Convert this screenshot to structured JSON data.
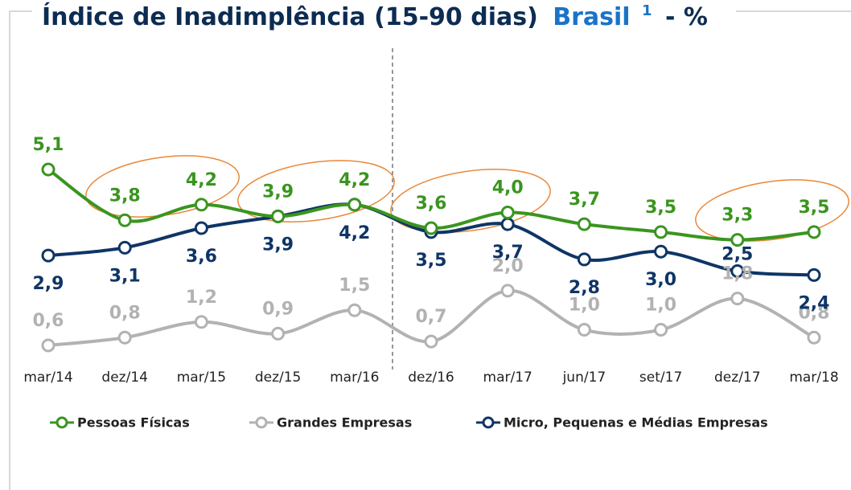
{
  "chart_data": {
    "type": "line",
    "title": "Índice de Inadimplência (15-90 dias)",
    "title_highlight": "Brasil",
    "title_footnote": "1",
    "title_suffix": "- %",
    "categories": [
      "mar/14",
      "dez/14",
      "mar/15",
      "dez/15",
      "mar/16",
      "dez/16",
      "mar/17",
      "jun/17",
      "set/17",
      "dez/17",
      "mar/18"
    ],
    "series": [
      {
        "name": "Pessoas Físicas",
        "color": "#3a951f",
        "values": [
          5.1,
          3.8,
          4.2,
          3.9,
          4.2,
          3.6,
          4.0,
          3.7,
          3.5,
          3.3,
          3.5
        ],
        "value_labels": [
          "5,1",
          "3,8",
          "4,2",
          "3,9",
          "4,2",
          "3,6",
          "4,0",
          "3,7",
          "3,5",
          "3,3",
          "3,5"
        ]
      },
      {
        "name": "Grandes Empresas",
        "color": "#b2b2b2",
        "values": [
          0.6,
          0.8,
          1.2,
          0.9,
          1.5,
          0.7,
          2.0,
          1.0,
          1.0,
          1.8,
          0.8
        ],
        "value_labels": [
          "0,6",
          "0,8",
          "1,2",
          "0,9",
          "1,5",
          "0,7",
          "2,0",
          "1,0",
          "1,0",
          "1,8",
          "0,8"
        ]
      },
      {
        "name": "Micro, Pequenas e Médias Empresas",
        "color": "#0f3566",
        "values": [
          2.9,
          3.1,
          3.6,
          3.9,
          4.2,
          3.5,
          3.7,
          2.8,
          3.0,
          2.5,
          2.4
        ],
        "value_labels": [
          "2,9",
          "3,1",
          "3,6",
          "3,9",
          "4,2",
          "3,5",
          "3,7",
          "2,8",
          "3,0",
          "2,5",
          "2,4"
        ]
      }
    ],
    "legend": "bottom"
  }
}
